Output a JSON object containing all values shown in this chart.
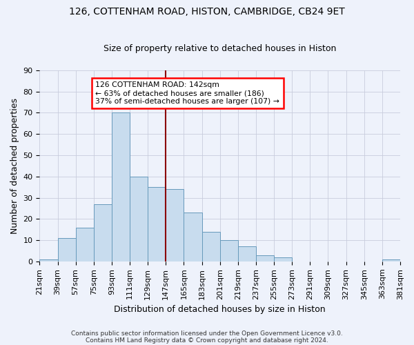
{
  "title": "126, COTTENHAM ROAD, HISTON, CAMBRIDGE, CB24 9ET",
  "subtitle": "Size of property relative to detached houses in Histon",
  "xlabel": "Distribution of detached houses by size in Histon",
  "ylabel": "Number of detached properties",
  "footnote1": "Contains HM Land Registry data © Crown copyright and database right 2024.",
  "footnote2": "Contains public sector information licensed under the Open Government Licence v3.0.",
  "bin_labels": [
    "21sqm",
    "39sqm",
    "57sqm",
    "75sqm",
    "93sqm",
    "111sqm",
    "129sqm",
    "147sqm",
    "165sqm",
    "183sqm",
    "201sqm",
    "219sqm",
    "237sqm",
    "255sqm",
    "273sqm",
    "291sqm",
    "309sqm",
    "327sqm",
    "345sqm",
    "363sqm",
    "381sqm"
  ],
  "values": [
    1,
    11,
    16,
    27,
    70,
    40,
    35,
    34,
    23,
    14,
    10,
    7,
    3,
    2,
    0,
    0,
    0,
    0,
    0,
    1
  ],
  "bar_color": "#c8dcee",
  "bar_edge_color": "#6699bb",
  "annotation_line1": "126 COTTENHAM ROAD: 142sqm",
  "annotation_line2": "← 63% of detached houses are smaller (186)",
  "annotation_line3": "37% of semi-detached houses are larger (107) →",
  "annotation_box_color": "white",
  "annotation_box_edge_color": "red",
  "vline_color": "darkred",
  "vline_x_index": 6.67,
  "ylim": [
    0,
    90
  ],
  "yticks": [
    0,
    10,
    20,
    30,
    40,
    50,
    60,
    70,
    80,
    90
  ],
  "background_color": "#eef2fb",
  "grid_color": "#c8ccdd",
  "title_fontsize": 10,
  "subtitle_fontsize": 9,
  "ylabel_fontsize": 9,
  "xlabel_fontsize": 9,
  "tick_fontsize": 8,
  "footnote_fontsize": 6.5
}
